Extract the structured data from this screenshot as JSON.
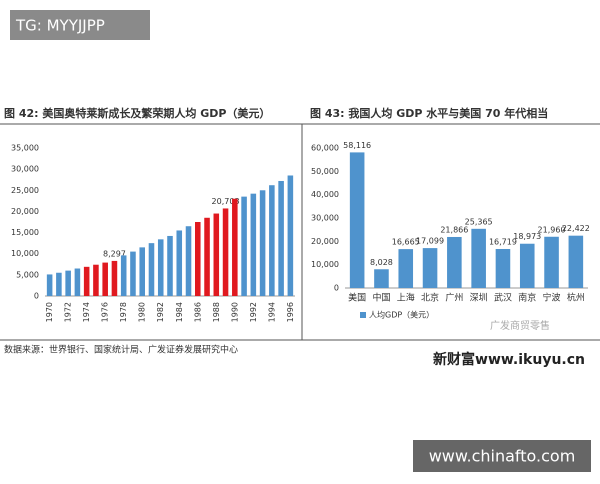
{
  "watermark_top": "TG: MYYJJPP",
  "source": "数据来源：世界银行、国家统计局、广发证券发展研究中心",
  "logo_text": "新财富www.ikuyu.cn",
  "weibo_mark": "广发商贸零售",
  "watermark_bottom": "www.chinafto.com",
  "chart_data": [
    {
      "type": "bar",
      "title": "图 42: 美国奥特莱斯成长及繁荣期人均 GDP（美元）",
      "categories": [
        "1970",
        null,
        "1972",
        null,
        "1974",
        null,
        "1976",
        null,
        "1978",
        null,
        "1980",
        null,
        "1982",
        null,
        "1984",
        null,
        "1986",
        null,
        "1988",
        null,
        "1990",
        null,
        "1992",
        null,
        "1994",
        null,
        "1996"
      ],
      "values": [
        5100,
        5500,
        6000,
        6500,
        6900,
        7400,
        7900,
        8297,
        9600,
        10500,
        11500,
        12500,
        13400,
        14200,
        15500,
        16500,
        17500,
        18500,
        19500,
        20703,
        23000,
        23500,
        24200,
        25000,
        26200,
        27200,
        28500
      ],
      "value_labels": [
        null,
        null,
        null,
        null,
        null,
        null,
        null,
        "8,297",
        null,
        null,
        null,
        null,
        null,
        null,
        null,
        null,
        null,
        null,
        null,
        "20,703",
        null,
        null,
        null,
        null,
        null,
        null,
        null
      ],
      "colors": [
        "#4f93cd",
        "#4f93cd",
        "#4f93cd",
        "#4f93cd",
        "#e0191f",
        "#e0191f",
        "#e0191f",
        "#e0191f",
        "#4f93cd",
        "#4f93cd",
        "#4f93cd",
        "#4f93cd",
        "#4f93cd",
        "#4f93cd",
        "#4f93cd",
        "#4f93cd",
        "#e0191f",
        "#e0191f",
        "#e0191f",
        "#e0191f",
        "#e0191f",
        "#4f93cd",
        "#4f93cd",
        "#4f93cd",
        "#4f93cd",
        "#4f93cd",
        "#4f93cd"
      ],
      "ylim": [
        0,
        35000
      ],
      "yticks": [
        0,
        {
          "value": 5000,
          "label": "5,000"
        },
        {
          "value": 10000,
          "label": "10,000"
        },
        {
          "value": 15000,
          "label": "15,000"
        },
        {
          "value": 20000,
          "label": "20,000"
        },
        {
          "value": 25000,
          "label": "25,000"
        },
        {
          "value": 30000,
          "label": "30,000"
        },
        {
          "value": 35000,
          "label": "35,000"
        }
      ],
      "grid": false
    },
    {
      "type": "bar",
      "title": "图 43: 我国人均 GDP 水平与美国 70 年代相当",
      "categories": [
        "美国",
        "中国",
        "上海",
        "北京",
        "广州",
        "深圳",
        "武汉",
        "南京",
        "宁波",
        "杭州"
      ],
      "series": [
        {
          "name": "人均GDP（美元）",
          "color": "#4f93cd",
          "values": [
            58116,
            8028,
            16665,
            17099,
            21866,
            25365,
            16719,
            18973,
            21960,
            22422
          ]
        }
      ],
      "value_labels": [
        "58,116",
        "8,028",
        "16,665",
        "17,099",
        "21,866",
        "25,365",
        "16,719",
        "18,973",
        "21,960",
        "22,422"
      ],
      "ylim": [
        0,
        60000
      ],
      "yticks": [
        0,
        {
          "value": 10000,
          "label": "10,000"
        },
        {
          "value": 20000,
          "label": "20,000"
        },
        {
          "value": 30000,
          "label": "30,000"
        },
        {
          "value": 40000,
          "label": "40,000"
        },
        {
          "value": 50000,
          "label": "50,000"
        },
        {
          "value": 60000,
          "label": "60,000"
        }
      ],
      "grid": false,
      "legend": "bottom-left"
    }
  ]
}
